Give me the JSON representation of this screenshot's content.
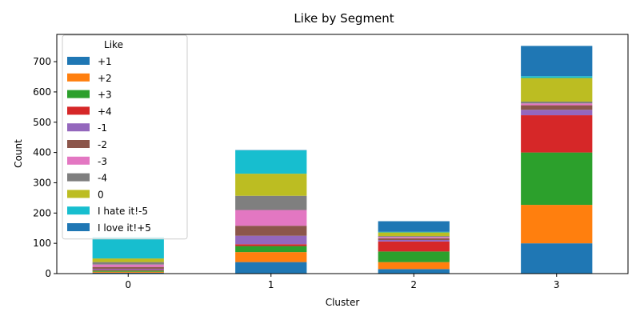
{
  "chart_data": {
    "type": "bar",
    "stacked": true,
    "title": "Like by Segment",
    "xlabel": "Cluster",
    "ylabel": "Count",
    "categories": [
      "0",
      "1",
      "2",
      "3"
    ],
    "ylim": [
      0,
      790
    ],
    "yticks": [
      0,
      100,
      200,
      300,
      400,
      500,
      600,
      700
    ],
    "grid": false,
    "legend": {
      "title": "Like",
      "placement": "top-left"
    },
    "series": [
      {
        "name": "+1",
        "color": "#1f77b4",
        "values": [
          3,
          38,
          15,
          100
        ]
      },
      {
        "name": "+2",
        "color": "#ff7f0e",
        "values": [
          3,
          33,
          23,
          127
        ]
      },
      {
        "name": "+3",
        "color": "#2ca02c",
        "values": [
          4,
          20,
          35,
          173
        ]
      },
      {
        "name": "+4",
        "color": "#d62728",
        "values": [
          2,
          6,
          33,
          123
        ]
      },
      {
        "name": "-1",
        "color": "#9467bd",
        "values": [
          4,
          28,
          5,
          18
        ]
      },
      {
        "name": "-2",
        "color": "#8c564b",
        "values": [
          6,
          33,
          6,
          15
        ]
      },
      {
        "name": "-3",
        "color": "#e377c2",
        "values": [
          8,
          52,
          4,
          6
        ]
      },
      {
        "name": "-4",
        "color": "#7f7f7f",
        "values": [
          8,
          47,
          3,
          6
        ]
      },
      {
        "name": "0",
        "color": "#bcbd22",
        "values": [
          12,
          73,
          12,
          78
        ]
      },
      {
        "name": "I hate it!-5",
        "color": "#17becf",
        "values": [
          70,
          77,
          2,
          6
        ]
      },
      {
        "name": "I love it!+5",
        "color": "#1f77b4",
        "values": [
          0,
          1,
          35,
          100
        ]
      }
    ]
  }
}
